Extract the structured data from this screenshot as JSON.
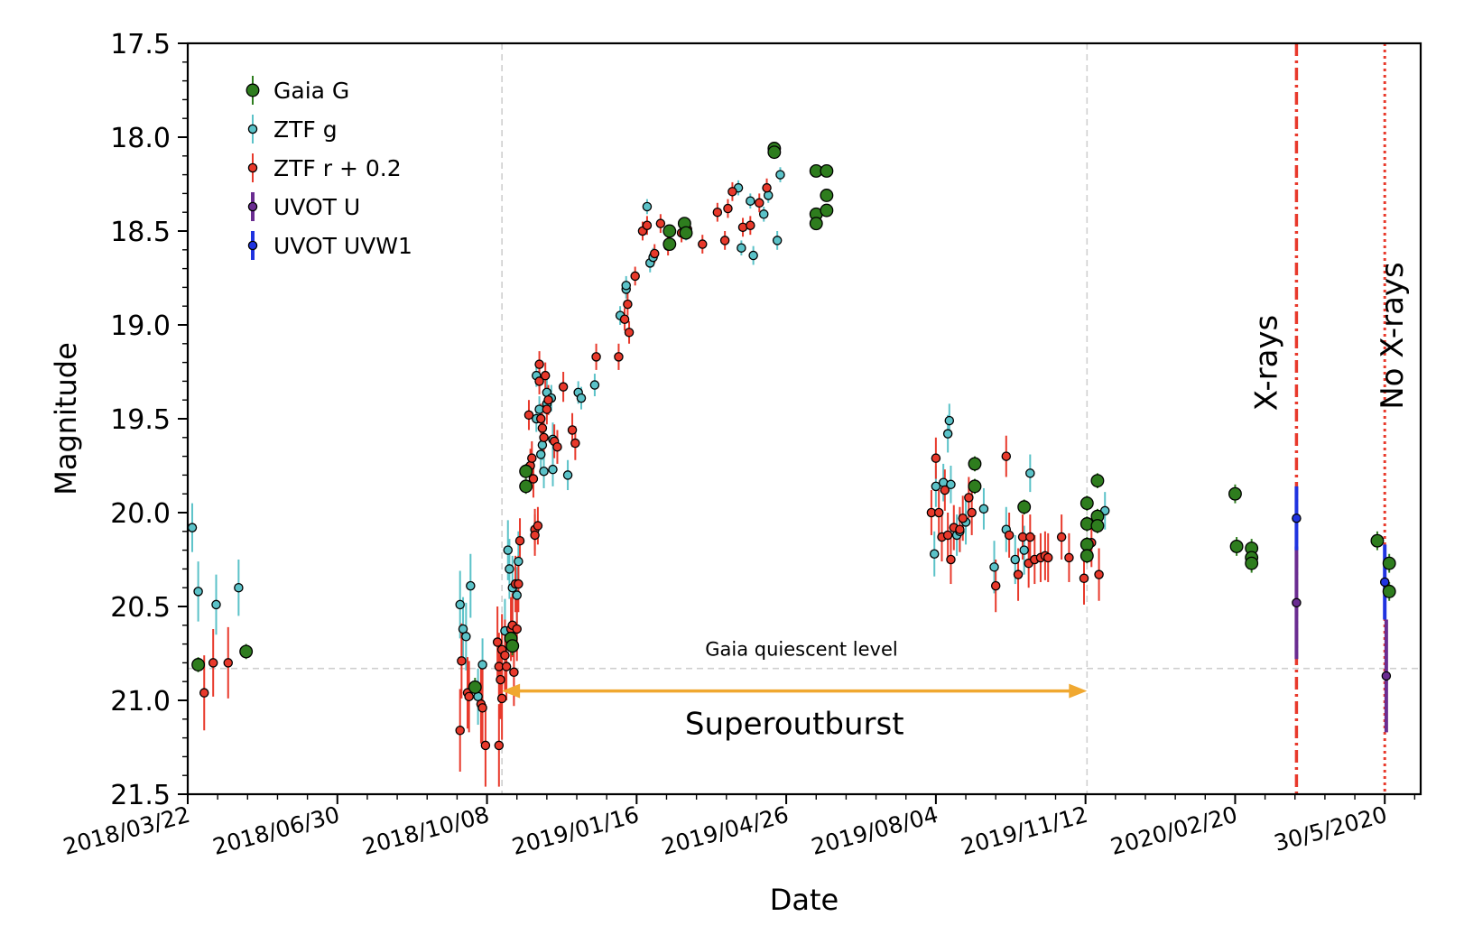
{
  "chart_data": {
    "type": "scatter",
    "xlabel": "Date",
    "ylabel": "Magnitude",
    "y_inverted": true,
    "ylim": [
      17.5,
      21.5
    ],
    "xlim": [
      "2018-03-22",
      "2020-06-23"
    ],
    "grid": false,
    "legend_position": "top-left",
    "x_ticks": [
      {
        "date": "2018-03-22",
        "label": "2018/03/22"
      },
      {
        "date": "2018-06-30",
        "label": "2018/06/30"
      },
      {
        "date": "2018-10-08",
        "label": "2018/10/08"
      },
      {
        "date": "2019-01-16",
        "label": "2019/01/16"
      },
      {
        "date": "2019-04-26",
        "label": "2019/04/26"
      },
      {
        "date": "2019-08-04",
        "label": "2019/08/04"
      },
      {
        "date": "2019-11-12",
        "label": "2019/11/12"
      },
      {
        "date": "2020-02-20",
        "label": "2020/02/20"
      },
      {
        "date": "2020-05-30",
        "label": "30/5/2020"
      }
    ],
    "y_ticks": [
      "17.5",
      "18.0",
      "18.5",
      "19.0",
      "19.5",
      "20.0",
      "20.5",
      "21.0",
      "21.5"
    ],
    "series": [
      {
        "name": "Gaia G",
        "color": "#2e7d1e",
        "marker": "large",
        "points": [
          [
            "2018-03-29",
            20.81,
            0.04
          ],
          [
            "2018-04-30",
            20.74,
            0.04
          ],
          [
            "2018-09-30",
            20.93,
            0.05
          ],
          [
            "2018-10-24",
            20.67,
            0.05
          ],
          [
            "2018-10-25",
            20.71,
            0.05
          ],
          [
            "2018-11-03",
            19.78,
            0.04
          ],
          [
            "2018-11-03",
            19.86,
            0.04
          ],
          [
            "2019-02-07",
            18.5,
            0.03
          ],
          [
            "2019-02-07",
            18.57,
            0.03
          ],
          [
            "2019-02-17",
            18.46,
            0.03
          ],
          [
            "2019-02-18",
            18.51,
            0.03
          ],
          [
            "2019-04-18",
            18.06,
            0.03
          ],
          [
            "2019-04-18",
            18.08,
            0.03
          ],
          [
            "2019-05-16",
            18.18,
            0.03
          ],
          [
            "2019-05-16",
            18.41,
            0.03
          ],
          [
            "2019-05-16",
            18.46,
            0.03
          ],
          [
            "2019-05-23",
            18.18,
            0.03
          ],
          [
            "2019-05-23",
            18.31,
            0.03
          ],
          [
            "2019-05-23",
            18.39,
            0.03
          ],
          [
            "2019-08-30",
            19.74,
            0.04
          ],
          [
            "2019-08-30",
            19.86,
            0.04
          ],
          [
            "2019-10-02",
            19.97,
            0.04
          ],
          [
            "2019-11-13",
            19.95,
            0.04
          ],
          [
            "2019-11-13",
            20.06,
            0.04
          ],
          [
            "2019-11-13",
            20.17,
            0.04
          ],
          [
            "2019-11-13",
            20.23,
            0.04
          ],
          [
            "2019-11-20",
            19.83,
            0.04
          ],
          [
            "2019-11-20",
            20.02,
            0.04
          ],
          [
            "2019-11-20",
            20.07,
            0.04
          ],
          [
            "2020-02-20",
            19.9,
            0.05
          ],
          [
            "2020-02-21",
            20.18,
            0.05
          ],
          [
            "2020-03-02",
            20.19,
            0.05
          ],
          [
            "2020-03-02",
            20.24,
            0.05
          ],
          [
            "2020-03-02",
            20.27,
            0.05
          ],
          [
            "2020-05-25",
            20.15,
            0.05
          ],
          [
            "2020-06-02",
            20.27,
            0.05
          ],
          [
            "2020-06-02",
            20.42,
            0.05
          ]
        ]
      },
      {
        "name": "ZTF g",
        "color": "#5bc2c8",
        "marker": "small",
        "points": [
          [
            "2018-03-25",
            20.08,
            0.13
          ],
          [
            "2018-03-29",
            20.42,
            0.16
          ],
          [
            "2018-04-10",
            20.49,
            0.16
          ],
          [
            "2018-04-25",
            20.4,
            0.15
          ],
          [
            "2018-09-20",
            20.49,
            0.18
          ],
          [
            "2018-09-22",
            20.62,
            0.17
          ],
          [
            "2018-09-24",
            20.66,
            0.18
          ],
          [
            "2018-09-27",
            20.39,
            0.17
          ],
          [
            "2018-10-02",
            20.98,
            0.15
          ],
          [
            "2018-10-05",
            20.81,
            0.14
          ],
          [
            "2018-10-20",
            20.63,
            0.17
          ],
          [
            "2018-10-22",
            20.2,
            0.16
          ],
          [
            "2018-10-23",
            20.3,
            0.16
          ],
          [
            "2018-10-25",
            20.4,
            0.17
          ],
          [
            "2018-10-28",
            20.44,
            0.15
          ],
          [
            "2018-10-29",
            20.26,
            0.16
          ],
          [
            "2018-11-10",
            19.27,
            0.06
          ],
          [
            "2018-11-10",
            19.5,
            0.07
          ],
          [
            "2018-11-12",
            19.45,
            0.07
          ],
          [
            "2018-11-13",
            19.69,
            0.09
          ],
          [
            "2018-11-14",
            19.64,
            0.08
          ],
          [
            "2018-11-15",
            19.78,
            0.09
          ],
          [
            "2018-11-17",
            19.36,
            0.07
          ],
          [
            "2018-11-17",
            19.42,
            0.07
          ],
          [
            "2018-11-20",
            19.39,
            0.07
          ],
          [
            "2018-11-21",
            19.61,
            0.09
          ],
          [
            "2018-11-21",
            19.77,
            0.09
          ],
          [
            "2018-12-01",
            19.8,
            0.08
          ],
          [
            "2018-12-08",
            19.36,
            0.06
          ],
          [
            "2018-12-10",
            19.39,
            0.06
          ],
          [
            "2018-12-19",
            19.32,
            0.06
          ],
          [
            "2019-01-05",
            18.95,
            0.05
          ],
          [
            "2019-01-09",
            18.81,
            0.05
          ],
          [
            "2019-01-09",
            18.79,
            0.05
          ],
          [
            "2019-01-23",
            18.37,
            0.04
          ],
          [
            "2019-01-25",
            18.67,
            0.05
          ],
          [
            "2019-01-27",
            18.64,
            0.05
          ],
          [
            "2019-02-18",
            18.51,
            0.04
          ],
          [
            "2019-03-25",
            18.27,
            0.04
          ],
          [
            "2019-03-27",
            18.59,
            0.04
          ],
          [
            "2019-04-02",
            18.34,
            0.04
          ],
          [
            "2019-04-04",
            18.63,
            0.05
          ],
          [
            "2019-04-11",
            18.41,
            0.04
          ],
          [
            "2019-04-14",
            18.31,
            0.04
          ],
          [
            "2019-04-20",
            18.55,
            0.05
          ],
          [
            "2019-04-22",
            18.2,
            0.04
          ],
          [
            "2019-08-03",
            20.22,
            0.12
          ],
          [
            "2019-08-04",
            19.86,
            0.11
          ],
          [
            "2019-08-09",
            19.84,
            0.1
          ],
          [
            "2019-08-12",
            19.58,
            0.1
          ],
          [
            "2019-08-13",
            19.51,
            0.09
          ],
          [
            "2019-08-14",
            19.85,
            0.1
          ],
          [
            "2019-08-18",
            20.12,
            0.11
          ],
          [
            "2019-08-20",
            20.1,
            0.11
          ],
          [
            "2019-08-24",
            20.05,
            0.12
          ],
          [
            "2019-09-05",
            19.98,
            0.11
          ],
          [
            "2019-09-12",
            20.29,
            0.14
          ],
          [
            "2019-09-20",
            20.09,
            0.12
          ],
          [
            "2019-09-26",
            20.25,
            0.13
          ],
          [
            "2019-10-02",
            20.2,
            0.13
          ],
          [
            "2019-10-06",
            19.79,
            0.1
          ],
          [
            "2019-11-25",
            19.99,
            0.1
          ]
        ]
      },
      {
        "name": "ZTF r + 0.2",
        "color": "#e8392b",
        "marker": "small",
        "points": [
          [
            "2018-04-02",
            20.96,
            0.2
          ],
          [
            "2018-04-08",
            20.8,
            0.18
          ],
          [
            "2018-04-18",
            20.8,
            0.19
          ],
          [
            "2018-09-20",
            21.16,
            0.22
          ],
          [
            "2018-09-21",
            20.79,
            0.2
          ],
          [
            "2018-09-25",
            20.96,
            0.19
          ],
          [
            "2018-09-26",
            20.98,
            0.19
          ],
          [
            "2018-10-04",
            21.02,
            0.21
          ],
          [
            "2018-10-05",
            21.04,
            0.21
          ],
          [
            "2018-10-07",
            21.24,
            0.22
          ],
          [
            "2018-10-15",
            20.69,
            0.19
          ],
          [
            "2018-10-16",
            20.82,
            0.18
          ],
          [
            "2018-10-16",
            21.24,
            0.22
          ],
          [
            "2018-10-17",
            20.89,
            0.21
          ],
          [
            "2018-10-18",
            20.99,
            0.22
          ],
          [
            "2018-10-18",
            20.73,
            0.19
          ],
          [
            "2018-10-20",
            20.76,
            0.19
          ],
          [
            "2018-10-21",
            20.82,
            0.18
          ],
          [
            "2018-10-24",
            20.62,
            0.17
          ],
          [
            "2018-10-25",
            20.6,
            0.17
          ],
          [
            "2018-10-26",
            20.85,
            0.18
          ],
          [
            "2018-10-27",
            20.38,
            0.15
          ],
          [
            "2018-10-28",
            20.62,
            0.17
          ],
          [
            "2018-10-29",
            20.38,
            0.15
          ],
          [
            "2018-10-30",
            20.15,
            0.12
          ],
          [
            "2018-11-05",
            19.48,
            0.08
          ],
          [
            "2018-11-06",
            19.75,
            0.09
          ],
          [
            "2018-11-07",
            19.71,
            0.09
          ],
          [
            "2018-11-08",
            19.82,
            0.1
          ],
          [
            "2018-11-09",
            20.09,
            0.11
          ],
          [
            "2018-11-09",
            20.12,
            0.11
          ],
          [
            "2018-11-11",
            20.07,
            0.1
          ],
          [
            "2018-11-12",
            19.21,
            0.07
          ],
          [
            "2018-11-12",
            19.3,
            0.07
          ],
          [
            "2018-11-13",
            19.5,
            0.08
          ],
          [
            "2018-11-14",
            19.55,
            0.08
          ],
          [
            "2018-11-15",
            19.6,
            0.09
          ],
          [
            "2018-11-16",
            19.27,
            0.07
          ],
          [
            "2018-11-17",
            19.45,
            0.08
          ],
          [
            "2018-11-18",
            19.4,
            0.08
          ],
          [
            "2018-11-22",
            19.62,
            0.09
          ],
          [
            "2018-11-24",
            19.65,
            0.09
          ],
          [
            "2018-11-28",
            19.33,
            0.08
          ],
          [
            "2018-12-04",
            19.56,
            0.09
          ],
          [
            "2018-12-06",
            19.63,
            0.09
          ],
          [
            "2018-12-20",
            19.17,
            0.07
          ],
          [
            "2019-01-04",
            19.17,
            0.07
          ],
          [
            "2019-01-08",
            18.97,
            0.06
          ],
          [
            "2019-01-10",
            18.89,
            0.06
          ],
          [
            "2019-01-11",
            19.04,
            0.06
          ],
          [
            "2019-01-15",
            18.74,
            0.05
          ],
          [
            "2019-01-20",
            18.5,
            0.05
          ],
          [
            "2019-01-23",
            18.47,
            0.05
          ],
          [
            "2019-01-28",
            18.62,
            0.05
          ],
          [
            "2019-02-01",
            18.46,
            0.05
          ],
          [
            "2019-02-06",
            18.58,
            0.05
          ],
          [
            "2019-02-15",
            18.51,
            0.05
          ],
          [
            "2019-02-19",
            18.49,
            0.05
          ],
          [
            "2019-03-01",
            18.57,
            0.05
          ],
          [
            "2019-03-11",
            18.4,
            0.05
          ],
          [
            "2019-03-16",
            18.55,
            0.05
          ],
          [
            "2019-03-18",
            18.38,
            0.05
          ],
          [
            "2019-03-21",
            18.29,
            0.05
          ],
          [
            "2019-03-28",
            18.48,
            0.05
          ],
          [
            "2019-04-02",
            18.47,
            0.05
          ],
          [
            "2019-04-08",
            18.35,
            0.05
          ],
          [
            "2019-04-13",
            18.27,
            0.05
          ],
          [
            "2019-08-01",
            20.0,
            0.12
          ],
          [
            "2019-08-04",
            19.71,
            0.11
          ],
          [
            "2019-08-06",
            20.0,
            0.12
          ],
          [
            "2019-08-08",
            20.13,
            0.13
          ],
          [
            "2019-08-10",
            19.88,
            0.11
          ],
          [
            "2019-08-12",
            20.12,
            0.12
          ],
          [
            "2019-08-14",
            20.25,
            0.13
          ],
          [
            "2019-08-16",
            20.08,
            0.12
          ],
          [
            "2019-08-20",
            20.09,
            0.12
          ],
          [
            "2019-08-22",
            20.03,
            0.12
          ],
          [
            "2019-08-26",
            19.92,
            0.11
          ],
          [
            "2019-08-28",
            20.0,
            0.12
          ],
          [
            "2019-09-13",
            20.39,
            0.14
          ],
          [
            "2019-09-20",
            19.7,
            0.11
          ],
          [
            "2019-09-22",
            20.12,
            0.12
          ],
          [
            "2019-09-28",
            20.33,
            0.14
          ],
          [
            "2019-10-01",
            20.13,
            0.12
          ],
          [
            "2019-10-05",
            20.27,
            0.13
          ],
          [
            "2019-10-06",
            20.13,
            0.12
          ],
          [
            "2019-10-09",
            20.25,
            0.13
          ],
          [
            "2019-10-13",
            20.24,
            0.13
          ],
          [
            "2019-10-16",
            20.23,
            0.13
          ],
          [
            "2019-10-18",
            20.24,
            0.13
          ],
          [
            "2019-10-27",
            20.13,
            0.12
          ],
          [
            "2019-11-01",
            20.24,
            0.13
          ],
          [
            "2019-11-11",
            20.35,
            0.14
          ],
          [
            "2019-11-16",
            20.16,
            0.13
          ],
          [
            "2019-11-21",
            20.33,
            0.14
          ]
        ]
      },
      {
        "name": "UVOT U",
        "color": "#6a2c91",
        "marker": "small",
        "lw": 4,
        "points": [
          [
            "2020-04-01",
            20.48,
            0.3
          ],
          [
            "2020-05-31",
            20.87,
            0.3
          ]
        ]
      },
      {
        "name": "UVOT UVW1",
        "color": "#1f33e0",
        "marker": "small",
        "lw": 4,
        "points": [
          [
            "2020-04-01",
            20.03,
            0.17
          ],
          [
            "2020-05-30",
            20.37,
            0.2
          ]
        ]
      }
    ],
    "annotations": {
      "quiescent_label": "Gaia quiescent level",
      "quiescent_mag": 20.83,
      "superoutburst_label": "Superoutburst",
      "superoutburst_start": "2018-10-18",
      "superoutburst_end": "2019-11-13",
      "superoutburst_mag": 20.95,
      "superoutburst_color": "#f0a830",
      "guide_lines": [
        "2018-10-18",
        "2019-11-13"
      ],
      "xrays_label": "X-rays",
      "xrays_date": "2020-04-01",
      "noxrays_label": "No X-rays",
      "noxrays_date": "2020-05-30",
      "marker_line_color": "#e8392b"
    }
  }
}
